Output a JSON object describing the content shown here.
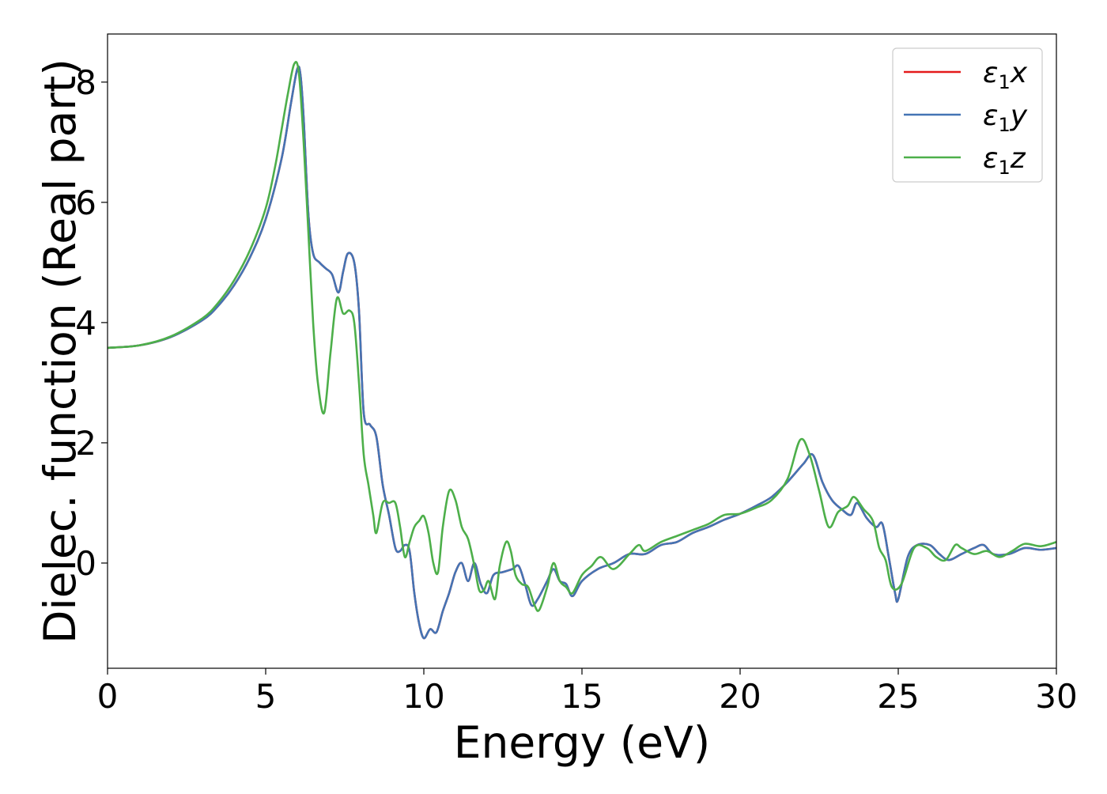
{
  "chart_data": {
    "type": "line",
    "title": "",
    "xlabel": "Energy (eV)",
    "ylabel": "Dielec. function (Real part)",
    "xlim": [
      0,
      30
    ],
    "ylim": [
      -1.75,
      8.8
    ],
    "xticks": [
      0,
      5,
      10,
      15,
      20,
      25,
      30
    ],
    "yticks": [
      0,
      2,
      4,
      6,
      8
    ],
    "grid": false,
    "legend_position": "top-right",
    "series": [
      {
        "name": "ε₁x",
        "legend_base": "ε",
        "legend_sub": "1",
        "legend_var": "x",
        "color": "#e41a1c",
        "points": [
          [
            0,
            3.58
          ],
          [
            1,
            3.62
          ],
          [
            2,
            3.76
          ],
          [
            3,
            4.04
          ],
          [
            3.5,
            4.28
          ],
          [
            4,
            4.62
          ],
          [
            4.5,
            5.08
          ],
          [
            5,
            5.72
          ],
          [
            5.5,
            6.72
          ],
          [
            5.8,
            7.65
          ],
          [
            6.0,
            8.22
          ],
          [
            6.1,
            8.12
          ],
          [
            6.2,
            7.4
          ],
          [
            6.35,
            5.8
          ],
          [
            6.5,
            5.15
          ],
          [
            6.7,
            5.0
          ],
          [
            6.9,
            4.9
          ],
          [
            7.1,
            4.8
          ],
          [
            7.3,
            4.5
          ],
          [
            7.45,
            4.85
          ],
          [
            7.6,
            5.15
          ],
          [
            7.8,
            5.0
          ],
          [
            7.95,
            4.2
          ],
          [
            8.1,
            2.5
          ],
          [
            8.3,
            2.3
          ],
          [
            8.5,
            2.1
          ],
          [
            8.7,
            1.3
          ],
          [
            8.9,
            0.8
          ],
          [
            9.1,
            0.25
          ],
          [
            9.25,
            0.2
          ],
          [
            9.4,
            0.3
          ],
          [
            9.55,
            0.2
          ],
          [
            9.7,
            -0.5
          ],
          [
            9.85,
            -1.0
          ],
          [
            10.0,
            -1.25
          ],
          [
            10.2,
            -1.1
          ],
          [
            10.4,
            -1.15
          ],
          [
            10.6,
            -0.8
          ],
          [
            10.8,
            -0.5
          ],
          [
            11.0,
            -0.15
          ],
          [
            11.2,
            0.0
          ],
          [
            11.4,
            -0.3
          ],
          [
            11.6,
            0.0
          ],
          [
            11.8,
            -0.35
          ],
          [
            12.0,
            -0.5
          ],
          [
            12.2,
            -0.2
          ],
          [
            12.5,
            -0.15
          ],
          [
            12.8,
            -0.1
          ],
          [
            13.0,
            -0.05
          ],
          [
            13.2,
            -0.35
          ],
          [
            13.4,
            -0.7
          ],
          [
            13.6,
            -0.6
          ],
          [
            13.9,
            -0.3
          ],
          [
            14.1,
            -0.1
          ],
          [
            14.3,
            -0.3
          ],
          [
            14.5,
            -0.35
          ],
          [
            14.7,
            -0.55
          ],
          [
            15.0,
            -0.3
          ],
          [
            15.5,
            -0.1
          ],
          [
            16.0,
            0.0
          ],
          [
            16.5,
            0.15
          ],
          [
            17.0,
            0.15
          ],
          [
            17.5,
            0.3
          ],
          [
            18.0,
            0.35
          ],
          [
            18.5,
            0.5
          ],
          [
            19.0,
            0.6
          ],
          [
            19.5,
            0.72
          ],
          [
            20.0,
            0.82
          ],
          [
            20.5,
            0.95
          ],
          [
            21.0,
            1.1
          ],
          [
            21.5,
            1.35
          ],
          [
            22.0,
            1.65
          ],
          [
            22.3,
            1.8
          ],
          [
            22.6,
            1.35
          ],
          [
            22.9,
            1.05
          ],
          [
            23.2,
            0.9
          ],
          [
            23.5,
            0.8
          ],
          [
            23.7,
            1.0
          ],
          [
            24.0,
            0.75
          ],
          [
            24.3,
            0.6
          ],
          [
            24.5,
            0.65
          ],
          [
            24.7,
            0.1
          ],
          [
            24.9,
            -0.5
          ],
          [
            25.0,
            -0.6
          ],
          [
            25.3,
            0.1
          ],
          [
            25.6,
            0.3
          ],
          [
            26.0,
            0.3
          ],
          [
            26.3,
            0.15
          ],
          [
            26.6,
            0.05
          ],
          [
            27.0,
            0.15
          ],
          [
            27.4,
            0.25
          ],
          [
            27.7,
            0.3
          ],
          [
            28.0,
            0.15
          ],
          [
            28.5,
            0.15
          ],
          [
            29.0,
            0.25
          ],
          [
            29.5,
            0.22
          ],
          [
            30.0,
            0.25
          ]
        ]
      },
      {
        "name": "ε₁y",
        "legend_base": "ε",
        "legend_sub": "1",
        "legend_var": "y",
        "color": "#4474b4",
        "points": [
          [
            0,
            3.58
          ],
          [
            1,
            3.62
          ],
          [
            2,
            3.76
          ],
          [
            3,
            4.04
          ],
          [
            3.5,
            4.28
          ],
          [
            4,
            4.62
          ],
          [
            4.5,
            5.08
          ],
          [
            5,
            5.72
          ],
          [
            5.5,
            6.72
          ],
          [
            5.8,
            7.65
          ],
          [
            6.0,
            8.22
          ],
          [
            6.1,
            8.12
          ],
          [
            6.2,
            7.4
          ],
          [
            6.35,
            5.8
          ],
          [
            6.5,
            5.15
          ],
          [
            6.7,
            5.0
          ],
          [
            6.9,
            4.9
          ],
          [
            7.1,
            4.8
          ],
          [
            7.3,
            4.5
          ],
          [
            7.45,
            4.85
          ],
          [
            7.6,
            5.15
          ],
          [
            7.8,
            5.0
          ],
          [
            7.95,
            4.2
          ],
          [
            8.1,
            2.5
          ],
          [
            8.3,
            2.3
          ],
          [
            8.5,
            2.1
          ],
          [
            8.7,
            1.3
          ],
          [
            8.9,
            0.8
          ],
          [
            9.1,
            0.25
          ],
          [
            9.25,
            0.2
          ],
          [
            9.4,
            0.3
          ],
          [
            9.55,
            0.2
          ],
          [
            9.7,
            -0.5
          ],
          [
            9.85,
            -1.0
          ],
          [
            10.0,
            -1.25
          ],
          [
            10.2,
            -1.1
          ],
          [
            10.4,
            -1.15
          ],
          [
            10.6,
            -0.8
          ],
          [
            10.8,
            -0.5
          ],
          [
            11.0,
            -0.15
          ],
          [
            11.2,
            0.0
          ],
          [
            11.4,
            -0.3
          ],
          [
            11.6,
            0.0
          ],
          [
            11.8,
            -0.35
          ],
          [
            12.0,
            -0.5
          ],
          [
            12.2,
            -0.2
          ],
          [
            12.5,
            -0.15
          ],
          [
            12.8,
            -0.1
          ],
          [
            13.0,
            -0.05
          ],
          [
            13.2,
            -0.35
          ],
          [
            13.4,
            -0.7
          ],
          [
            13.6,
            -0.6
          ],
          [
            13.9,
            -0.3
          ],
          [
            14.1,
            -0.1
          ],
          [
            14.3,
            -0.3
          ],
          [
            14.5,
            -0.35
          ],
          [
            14.7,
            -0.55
          ],
          [
            15.0,
            -0.3
          ],
          [
            15.5,
            -0.1
          ],
          [
            16.0,
            0.0
          ],
          [
            16.5,
            0.15
          ],
          [
            17.0,
            0.15
          ],
          [
            17.5,
            0.3
          ],
          [
            18.0,
            0.35
          ],
          [
            18.5,
            0.5
          ],
          [
            19.0,
            0.6
          ],
          [
            19.5,
            0.72
          ],
          [
            20.0,
            0.82
          ],
          [
            20.5,
            0.95
          ],
          [
            21.0,
            1.1
          ],
          [
            21.5,
            1.35
          ],
          [
            22.0,
            1.65
          ],
          [
            22.3,
            1.8
          ],
          [
            22.6,
            1.35
          ],
          [
            22.9,
            1.05
          ],
          [
            23.2,
            0.9
          ],
          [
            23.5,
            0.8
          ],
          [
            23.7,
            1.0
          ],
          [
            24.0,
            0.75
          ],
          [
            24.3,
            0.6
          ],
          [
            24.5,
            0.65
          ],
          [
            24.7,
            0.1
          ],
          [
            24.9,
            -0.5
          ],
          [
            25.0,
            -0.6
          ],
          [
            25.3,
            0.1
          ],
          [
            25.6,
            0.3
          ],
          [
            26.0,
            0.3
          ],
          [
            26.3,
            0.15
          ],
          [
            26.6,
            0.05
          ],
          [
            27.0,
            0.15
          ],
          [
            27.4,
            0.25
          ],
          [
            27.7,
            0.3
          ],
          [
            28.0,
            0.15
          ],
          [
            28.5,
            0.15
          ],
          [
            29.0,
            0.25
          ],
          [
            29.5,
            0.22
          ],
          [
            30.0,
            0.25
          ]
        ]
      },
      {
        "name": "ε₁z",
        "legend_base": "ε",
        "legend_sub": "1",
        "legend_var": "z",
        "color": "#4daf4a",
        "points": [
          [
            0,
            3.58
          ],
          [
            1,
            3.62
          ],
          [
            2,
            3.77
          ],
          [
            3,
            4.07
          ],
          [
            3.5,
            4.33
          ],
          [
            4,
            4.7
          ],
          [
            4.5,
            5.2
          ],
          [
            5,
            5.9
          ],
          [
            5.3,
            6.6
          ],
          [
            5.5,
            7.2
          ],
          [
            5.7,
            7.8
          ],
          [
            5.9,
            8.3
          ],
          [
            6.05,
            8.15
          ],
          [
            6.2,
            7.0
          ],
          [
            6.35,
            5.5
          ],
          [
            6.5,
            4.0
          ],
          [
            6.65,
            3.0
          ],
          [
            6.85,
            2.5
          ],
          [
            7.05,
            3.5
          ],
          [
            7.25,
            4.4
          ],
          [
            7.45,
            4.15
          ],
          [
            7.65,
            4.2
          ],
          [
            7.8,
            4.0
          ],
          [
            7.95,
            3.0
          ],
          [
            8.1,
            1.8
          ],
          [
            8.25,
            1.3
          ],
          [
            8.4,
            0.8
          ],
          [
            8.5,
            0.5
          ],
          [
            8.7,
            1.0
          ],
          [
            8.9,
            1.0
          ],
          [
            9.1,
            1.0
          ],
          [
            9.25,
            0.6
          ],
          [
            9.4,
            0.1
          ],
          [
            9.55,
            0.35
          ],
          [
            9.7,
            0.6
          ],
          [
            9.85,
            0.7
          ],
          [
            10.0,
            0.78
          ],
          [
            10.15,
            0.5
          ],
          [
            10.3,
            0.0
          ],
          [
            10.45,
            -0.15
          ],
          [
            10.6,
            0.6
          ],
          [
            10.8,
            1.2
          ],
          [
            11.0,
            1.05
          ],
          [
            11.2,
            0.6
          ],
          [
            11.4,
            0.4
          ],
          [
            11.6,
            -0.05
          ],
          [
            11.75,
            -0.45
          ],
          [
            11.9,
            -0.45
          ],
          [
            12.05,
            -0.3
          ],
          [
            12.25,
            -0.6
          ],
          [
            12.4,
            -0.05
          ],
          [
            12.6,
            0.35
          ],
          [
            12.75,
            0.2
          ],
          [
            12.9,
            -0.2
          ],
          [
            13.1,
            -0.35
          ],
          [
            13.3,
            -0.4
          ],
          [
            13.5,
            -0.7
          ],
          [
            13.65,
            -0.78
          ],
          [
            13.9,
            -0.4
          ],
          [
            14.1,
            0.0
          ],
          [
            14.3,
            -0.3
          ],
          [
            14.5,
            -0.4
          ],
          [
            14.7,
            -0.5
          ],
          [
            15.0,
            -0.2
          ],
          [
            15.3,
            -0.05
          ],
          [
            15.6,
            0.1
          ],
          [
            16.0,
            -0.1
          ],
          [
            16.5,
            0.15
          ],
          [
            16.8,
            0.3
          ],
          [
            17.0,
            0.2
          ],
          [
            17.5,
            0.35
          ],
          [
            18.0,
            0.45
          ],
          [
            18.5,
            0.55
          ],
          [
            19.0,
            0.65
          ],
          [
            19.5,
            0.8
          ],
          [
            20.0,
            0.82
          ],
          [
            20.5,
            0.92
          ],
          [
            21.0,
            1.05
          ],
          [
            21.5,
            1.4
          ],
          [
            21.9,
            2.05
          ],
          [
            22.2,
            1.8
          ],
          [
            22.5,
            1.2
          ],
          [
            22.8,
            0.6
          ],
          [
            23.1,
            0.85
          ],
          [
            23.4,
            0.95
          ],
          [
            23.6,
            1.1
          ],
          [
            23.9,
            0.9
          ],
          [
            24.2,
            0.7
          ],
          [
            24.4,
            0.25
          ],
          [
            24.6,
            0.05
          ],
          [
            24.8,
            -0.4
          ],
          [
            25.1,
            -0.35
          ],
          [
            25.5,
            0.25
          ],
          [
            25.9,
            0.25
          ],
          [
            26.2,
            0.1
          ],
          [
            26.5,
            0.05
          ],
          [
            26.8,
            0.3
          ],
          [
            27.0,
            0.25
          ],
          [
            27.4,
            0.15
          ],
          [
            27.8,
            0.2
          ],
          [
            28.2,
            0.1
          ],
          [
            28.6,
            0.2
          ],
          [
            29.0,
            0.32
          ],
          [
            29.5,
            0.28
          ],
          [
            30.0,
            0.35
          ]
        ]
      }
    ]
  }
}
